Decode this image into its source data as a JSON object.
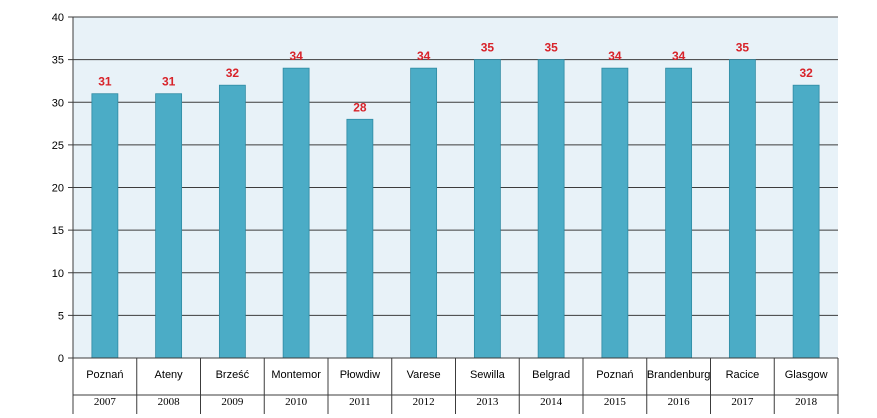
{
  "chart_data": {
    "type": "bar",
    "categories": [
      {
        "place": "Poznań",
        "year": "2007"
      },
      {
        "place": "Ateny",
        "year": "2008"
      },
      {
        "place": "Brześć",
        "year": "2009"
      },
      {
        "place": "Montemor",
        "year": "2010"
      },
      {
        "place": "Płowdiw",
        "year": "2011"
      },
      {
        "place": "Varese",
        "year": "2012"
      },
      {
        "place": "Sewilla",
        "year": "2013"
      },
      {
        "place": "Belgrad",
        "year": "2014"
      },
      {
        "place": "Poznań",
        "year": "2015"
      },
      {
        "place": "Brandenburg",
        "year": "2016"
      },
      {
        "place": "Racice",
        "year": "2017"
      },
      {
        "place": "Glasgow",
        "year": "2018"
      }
    ],
    "values": [
      31,
      31,
      32,
      34,
      28,
      34,
      35,
      35,
      34,
      34,
      35,
      32
    ],
    "data_labels": [
      "31",
      "31",
      "32",
      "34",
      "28",
      "34",
      "35",
      "35",
      "34",
      "34",
      "35",
      "32"
    ],
    "y_ticks": [
      "0",
      "5",
      "10",
      "15",
      "20",
      "25",
      "30",
      "35",
      "40"
    ],
    "ylim": [
      0,
      40
    ],
    "title": "",
    "xlabel": "",
    "ylabel": "",
    "grid": true,
    "colors": {
      "bar": "#4bacc6",
      "bar_edge": "#2f8aa3",
      "plot_background": "#e8f2f8",
      "gridline": "#3c3c3c",
      "data_label": "#d8232a"
    }
  }
}
